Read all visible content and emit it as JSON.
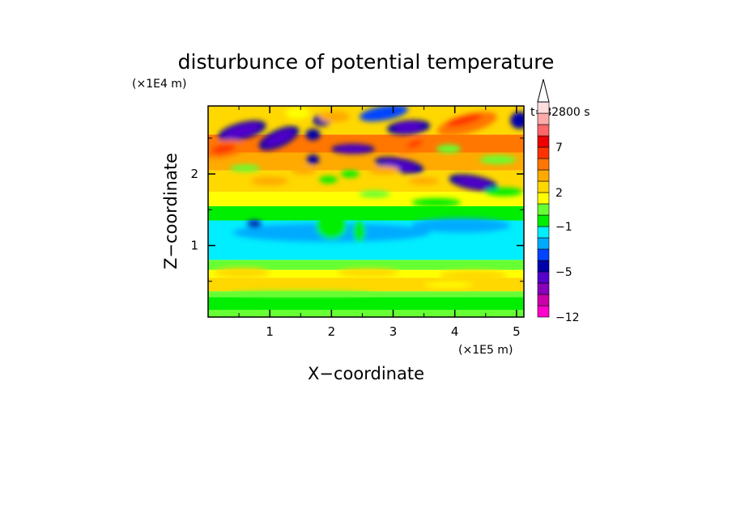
{
  "chart_data": {
    "type": "heatmap",
    "title": "disturbunce of potential temperature",
    "xlabel": "X−coordinate",
    "ylabel": "Z−coordinate",
    "x_unit": "(×1E5 m)",
    "y_unit": "(×1E4 m)",
    "time_label": "t=82800 s",
    "xlim": [
      0,
      5.12
    ],
    "ylim": [
      0,
      2.95
    ],
    "x_ticks": [
      1,
      2,
      3,
      4,
      5
    ],
    "y_ticks": [
      1,
      2
    ],
    "colorbar": {
      "levels": [
        -12,
        -10,
        -8,
        -6,
        -5,
        -4,
        -3,
        -2,
        -1,
        0,
        1,
        2,
        3,
        5,
        6,
        7,
        8,
        9,
        10
      ],
      "tick_labels": [
        "-12",
        "-5",
        "-1",
        "2",
        "7"
      ],
      "colors": [
        "#ff00cc",
        "#cc00aa",
        "#8800bb",
        "#5500cc",
        "#0000aa",
        "#0044ff",
        "#00aaff",
        "#00eeff",
        "#00ee00",
        "#66ff33",
        "#ffff00",
        "#ffd800",
        "#ffaa00",
        "#ff7700",
        "#ff3300",
        "#ee0000",
        "#ff6666",
        "#ffaaaa",
        "#ffdddd"
      ],
      "extend": "max"
    },
    "grid": false
  }
}
